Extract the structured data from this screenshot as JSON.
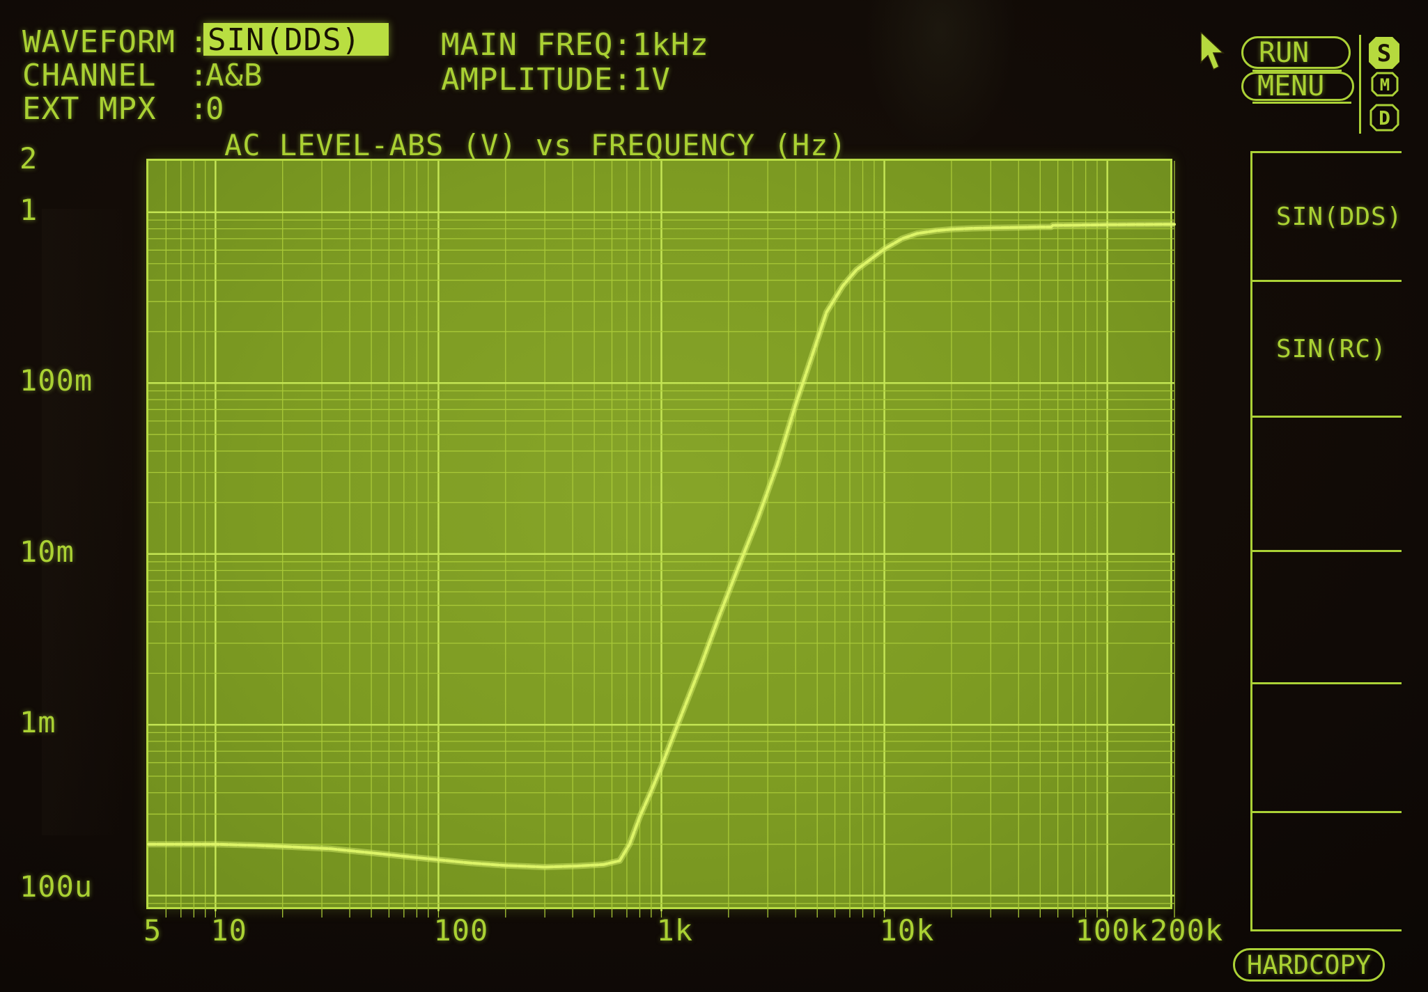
{
  "screen": {
    "header": {
      "fields": [
        {
          "label": "WAVEFORM",
          "separator": ":",
          "value": "SIN(DDS)",
          "highlighted": true
        },
        {
          "label": "CHANNEL",
          "separator": ":",
          "value": "A&B",
          "highlighted": false
        },
        {
          "label": "EXT MPX",
          "separator": ":",
          "value": "0",
          "highlighted": false
        }
      ],
      "params": [
        {
          "label": "MAIN FREQ",
          "separator": ":",
          "value": "1kHz"
        },
        {
          "label": "AMPLITUDE",
          "separator": ":",
          "value": "1V"
        }
      ]
    },
    "status": {
      "run_label": "RUN",
      "menu_label": "MENU",
      "mode_badges": [
        {
          "letter": "S",
          "active": true
        },
        {
          "letter": "M",
          "active": false
        },
        {
          "letter": "D",
          "active": false
        }
      ]
    },
    "softkeys": {
      "items": [
        {
          "label": "SIN(DDS)"
        },
        {
          "label": "SIN(RC)"
        },
        {
          "label": ""
        },
        {
          "label": ""
        },
        {
          "label": ""
        },
        {
          "label": ""
        }
      ],
      "hardcopy_label": "HARDCOPY"
    },
    "colors": {
      "background": "#100a06",
      "text_green": "#aad133",
      "highlight_bg": "#b9de41",
      "highlight_text": "#181203",
      "plot_fill": "#7d9b22",
      "grid_minor": "#a9c938",
      "grid_major": "#c4e554",
      "plot_border": "#b8dc44",
      "trace": "#ddf468"
    }
  },
  "chart_data": {
    "type": "line",
    "title": "AC LEVEL-ABS (V) vs FREQUENCY (Hz)",
    "xlabel": "FREQUENCY (Hz)",
    "ylabel": "AC LEVEL-ABS (V)",
    "x_scale": "log",
    "y_scale": "log",
    "xlim": [
      5,
      200000
    ],
    "ylim": [
      8.1e-05,
      2
    ],
    "grid": true,
    "x_ticks": [
      {
        "f": 5,
        "label": "5"
      },
      {
        "f": 10,
        "label": "10"
      },
      {
        "f": 100,
        "label": "100"
      },
      {
        "f": 1000,
        "label": "1k"
      },
      {
        "f": 10000,
        "label": "10k"
      },
      {
        "f": 100000,
        "label": "100k",
        "dx": -39
      },
      {
        "f": 200000,
        "label": "200k",
        "dx": -28
      }
    ],
    "y_ticks": [
      {
        "v": 2,
        "label": "2"
      },
      {
        "v": 1,
        "label": "1"
      },
      {
        "v": 0.1,
        "label": "100m"
      },
      {
        "v": 0.01,
        "label": "10m"
      },
      {
        "v": 0.001,
        "label": "1m"
      },
      {
        "v": 0.0001,
        "label": "100u",
        "dy": -10
      }
    ],
    "series": [
      {
        "name": "AC LEVEL-ABS",
        "points": [
          [
            5,
            0.0002
          ],
          [
            7,
            0.0002
          ],
          [
            10,
            0.0002
          ],
          [
            15,
            0.000197
          ],
          [
            22,
            0.000193
          ],
          [
            33,
            0.000188
          ],
          [
            50,
            0.000178
          ],
          [
            70,
            0.00017
          ],
          [
            100,
            0.000162
          ],
          [
            140,
            0.000155
          ],
          [
            200,
            0.00015
          ],
          [
            300,
            0.000147
          ],
          [
            420,
            0.000149
          ],
          [
            550,
            0.000152
          ],
          [
            650,
            0.00016
          ],
          [
            720,
            0.0002
          ],
          [
            800,
            0.00029
          ],
          [
            900,
            0.00041
          ],
          [
            1000,
            0.00057
          ],
          [
            1200,
            0.00105
          ],
          [
            1500,
            0.0022
          ],
          [
            1800,
            0.0042
          ],
          [
            2200,
            0.0082
          ],
          [
            2700,
            0.016
          ],
          [
            3300,
            0.033
          ],
          [
            4000,
            0.075
          ],
          [
            4700,
            0.14
          ],
          [
            5500,
            0.26
          ],
          [
            6500,
            0.37
          ],
          [
            7500,
            0.46
          ],
          [
            8500,
            0.52
          ],
          [
            10000,
            0.61
          ],
          [
            12000,
            0.7
          ],
          [
            14000,
            0.75
          ],
          [
            17000,
            0.78
          ],
          [
            20000,
            0.795
          ],
          [
            25000,
            0.805
          ],
          [
            32000,
            0.81
          ],
          [
            40000,
            0.815
          ],
          [
            50000,
            0.82
          ],
          [
            56000,
            0.82
          ],
          [
            57000,
            0.838
          ],
          [
            70000,
            0.84
          ],
          [
            100000,
            0.845
          ],
          [
            140000,
            0.848
          ],
          [
            200000,
            0.85
          ]
        ]
      }
    ]
  }
}
